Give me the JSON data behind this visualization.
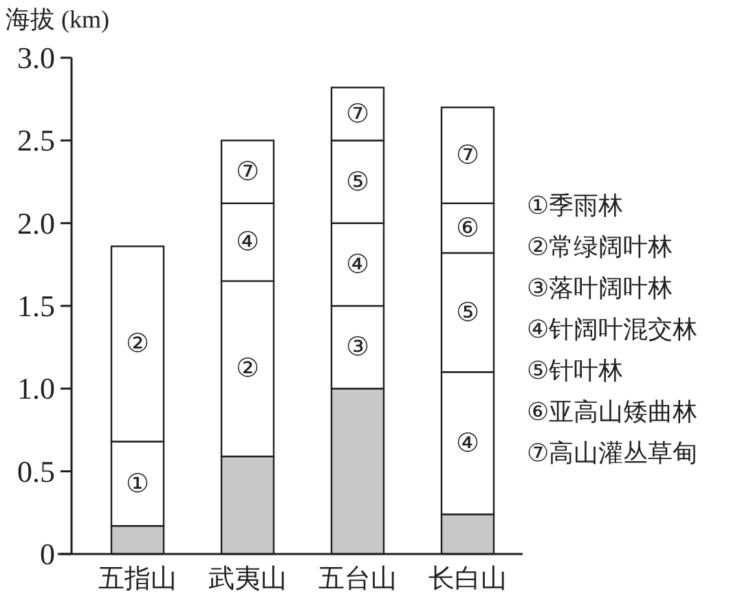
{
  "chart_data": {
    "type": "bar",
    "stacked": true,
    "ylabel": "海拔 (km)",
    "categories": [
      "五指山",
      "武夷山",
      "五台山",
      "长白山"
    ],
    "ylim": [
      0,
      3
    ],
    "yticks": [
      0,
      0.5,
      {
        "value": 1,
        "label": "1.0"
      },
      1.5,
      {
        "value": 2,
        "label": "2.0"
      },
      2.5,
      {
        "value": 3,
        "label": "3.0"
      }
    ],
    "grid": false,
    "annotations": [
      "①季雨林",
      "②常绿阔叶林",
      "③落叶阔叶林",
      "④针阔叶混交林",
      "⑤针叶林",
      "⑥亚高山矮曲林",
      "⑦高山灌丛草甸"
    ],
    "series": [
      {
        "color": "#c8c8c8",
        "values": [
          0.17,
          0.59,
          1.0,
          0.24
        ]
      },
      {
        "color": "#ffffff",
        "values": [
          0.51,
          null,
          null,
          null
        ],
        "value_labels": [
          "①",
          null,
          null,
          null
        ]
      },
      {
        "color": "#ffffff",
        "values": [
          1.18,
          1.06,
          null,
          null
        ],
        "value_labels": [
          "②",
          "②",
          null,
          null
        ]
      },
      {
        "color": "#ffffff",
        "values": [
          null,
          null,
          0.5,
          null
        ],
        "value_labels": [
          null,
          null,
          "③",
          null
        ]
      },
      {
        "color": "#ffffff",
        "values": [
          null,
          0.47,
          0.5,
          0.86
        ],
        "value_labels": [
          null,
          "④",
          "④",
          "④"
        ]
      },
      {
        "color": "#ffffff",
        "values": [
          null,
          null,
          0.5,
          0.72
        ],
        "value_labels": [
          null,
          null,
          "⑤",
          "⑤"
        ]
      },
      {
        "color": "#ffffff",
        "values": [
          null,
          null,
          null,
          0.3
        ],
        "value_labels": [
          null,
          null,
          null,
          "⑥"
        ]
      },
      {
        "color": "#ffffff",
        "values": [
          null,
          0.38,
          0.32,
          0.58
        ],
        "value_labels": [
          null,
          "⑦",
          "⑦",
          "⑦"
        ]
      }
    ]
  }
}
